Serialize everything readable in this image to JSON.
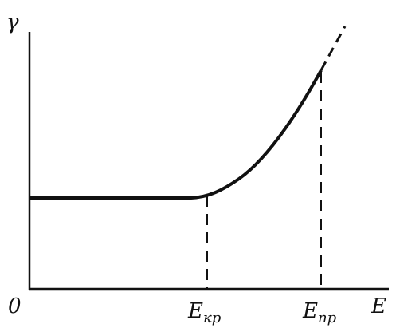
{
  "diagram": {
    "y_axis_label": "γ",
    "origin_label": "0",
    "x_axis_label": "E",
    "critical_field": {
      "symbol": "E",
      "subscript": "кр"
    },
    "breakdown_field": {
      "symbol": "E",
      "subscript": "пр"
    }
  }
}
